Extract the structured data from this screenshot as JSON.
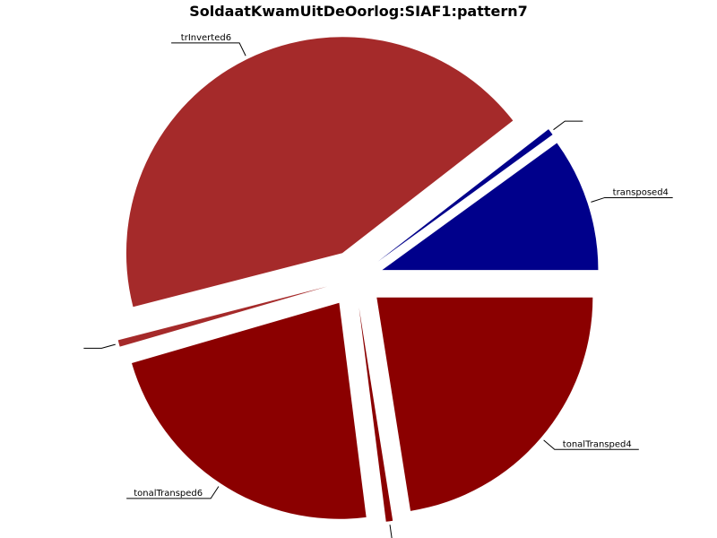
{
  "chart_data": {
    "type": "pie",
    "title": "SoldaatKwamUitDeOorlog:SIAF1:pattern7",
    "slices": [
      {
        "label": "tonalTransped4",
        "value": 22.5,
        "color": "#8b0000"
      },
      {
        "label": "",
        "value": 0.5,
        "color": "#8b0000"
      },
      {
        "label": "tonalTransped6",
        "value": 22.5,
        "color": "#8b0000"
      },
      {
        "label": "",
        "value": 0.5,
        "color": "#a52a2a"
      },
      {
        "label": "trInverted6",
        "value": 43.5,
        "color": "#a52a2a"
      },
      {
        "label": "",
        "value": 0.5,
        "color": "#00008b"
      },
      {
        "label": "transposed4",
        "value": 10.0,
        "color": "#00008b"
      }
    ],
    "start": "east",
    "direction": "clockwise",
    "exploded": true
  }
}
